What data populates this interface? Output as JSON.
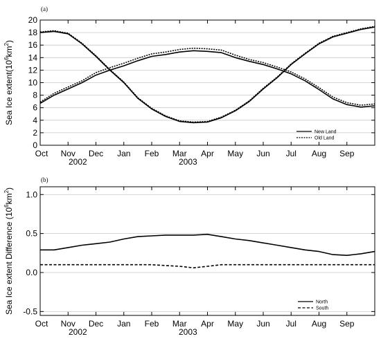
{
  "chart_data": [
    {
      "panel": "(a)",
      "type": "line",
      "ylabel": "Sea Ice extent(10⁶km²)",
      "ylabel_parts": {
        "prefix": "Sea Ice extent(10",
        "exp1": "6",
        "mid": "km",
        "exp2": "2",
        "suffix": ")"
      },
      "months": [
        "Oct",
        "Nov",
        "Dec",
        "Jan",
        "Feb",
        "Mar",
        "Apr",
        "May",
        "Jun",
        "Jul",
        "Aug",
        "Sep"
      ],
      "year_labels": [
        {
          "text": "2002",
          "at": 1.35
        },
        {
          "text": "2003",
          "at": 5.3
        }
      ],
      "ylim": [
        0,
        20
      ],
      "yticks": [
        0,
        2,
        4,
        6,
        8,
        10,
        12,
        14,
        16,
        18,
        20
      ],
      "xrange_months": [
        0,
        12
      ],
      "grid": "horizontal",
      "legend": "bottom-right",
      "x_month": [
        0,
        0.5,
        1,
        1.5,
        2,
        2.5,
        3,
        3.5,
        4,
        4.5,
        5,
        5.5,
        6,
        6.5,
        7,
        7.5,
        8,
        8.5,
        9,
        9.5,
        10,
        10.5,
        11,
        11.5,
        12
      ],
      "series": [
        {
          "name": "New Land",
          "dash": "solid",
          "values": [
            18.0,
            18.2,
            17.8,
            16.2,
            14.2,
            12.0,
            10.0,
            7.5,
            5.8,
            4.6,
            3.8,
            3.6,
            3.7,
            4.4,
            5.5,
            7.0,
            9.0,
            10.8,
            12.9,
            14.6,
            16.2,
            17.3,
            17.9,
            18.5,
            18.9
          ]
        },
        {
          "name": "Old Land",
          "dash": "dotted",
          "values": [
            18.1,
            18.3,
            17.9,
            16.3,
            14.3,
            12.1,
            10.1,
            7.6,
            5.9,
            4.7,
            3.9,
            3.7,
            3.8,
            4.5,
            5.6,
            7.1,
            9.1,
            10.9,
            13.0,
            14.7,
            16.3,
            17.4,
            18.0,
            18.6,
            19.0
          ]
        },
        {
          "name": "New Land",
          "dash": "solid",
          "values": [
            6.7,
            8.0,
            9.0,
            10.0,
            11.2,
            12.0,
            12.7,
            13.5,
            14.2,
            14.5,
            14.9,
            15.1,
            15.0,
            14.8,
            14.0,
            13.4,
            12.9,
            12.2,
            11.4,
            10.3,
            8.9,
            7.4,
            6.5,
            6.1,
            6.3
          ]
        },
        {
          "name": "Old Land",
          "dash": "dotted",
          "values": [
            6.9,
            8.3,
            9.3,
            10.3,
            11.6,
            12.4,
            13.1,
            13.9,
            14.6,
            14.9,
            15.3,
            15.5,
            15.4,
            15.2,
            14.4,
            13.7,
            13.2,
            12.5,
            11.7,
            10.6,
            9.2,
            7.7,
            6.8,
            6.4,
            6.6
          ]
        }
      ],
      "legend_entries": [
        {
          "label": "New Land",
          "dash": "solid"
        },
        {
          "label": "Old Land",
          "dash": "dotted"
        }
      ]
    },
    {
      "panel": "(b)",
      "type": "line",
      "ylabel": "Sea Ice extent Difference (10⁶km²)",
      "ylabel_parts": {
        "prefix": "Sea Ice extent Difference (10",
        "exp1": "6",
        "mid": "km",
        "exp2": "2",
        "suffix": ")"
      },
      "months": [
        "Oct",
        "Nov",
        "Dec",
        "Jan",
        "Feb",
        "Mar",
        "Apr",
        "May",
        "Jun",
        "Jul",
        "Aug",
        "Sep"
      ],
      "year_labels": [
        {
          "text": "2002",
          "at": 1.35
        },
        {
          "text": "2003",
          "at": 5.3
        }
      ],
      "ylim": [
        -0.55,
        1.1
      ],
      "yticks": [
        -0.5,
        0.0,
        0.5,
        1.0
      ],
      "ytick_labels": [
        "-0.5",
        "0.0",
        "0.5",
        "1.0"
      ],
      "xrange_months": [
        0,
        12
      ],
      "grid": "horizontal",
      "legend": "bottom-right",
      "x_month": [
        0,
        0.5,
        1,
        1.5,
        2,
        2.5,
        3,
        3.5,
        4,
        4.5,
        5,
        5.5,
        6,
        6.5,
        7,
        7.5,
        8,
        8.5,
        9,
        9.5,
        10,
        10.5,
        11,
        11.5,
        12
      ],
      "series": [
        {
          "name": "North",
          "dash": "solid",
          "values": [
            0.29,
            0.29,
            0.32,
            0.35,
            0.37,
            0.39,
            0.43,
            0.46,
            0.47,
            0.48,
            0.48,
            0.48,
            0.49,
            0.46,
            0.43,
            0.41,
            0.38,
            0.35,
            0.32,
            0.29,
            0.27,
            0.23,
            0.22,
            0.24,
            0.27
          ]
        },
        {
          "name": "South",
          "dash": "dashed",
          "values": [
            0.1,
            0.1,
            0.1,
            0.1,
            0.1,
            0.1,
            0.1,
            0.1,
            0.1,
            0.09,
            0.08,
            0.06,
            0.08,
            0.1,
            0.1,
            0.1,
            0.1,
            0.1,
            0.1,
            0.1,
            0.1,
            0.1,
            0.1,
            0.1,
            0.1
          ]
        }
      ],
      "legend_entries": [
        {
          "label": "North",
          "dash": "solid"
        },
        {
          "label": "South",
          "dash": "dashed"
        }
      ]
    }
  ]
}
